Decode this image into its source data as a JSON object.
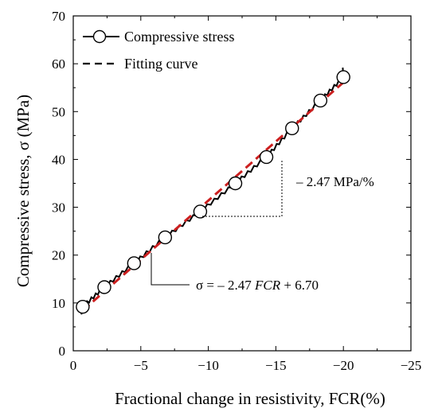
{
  "chart_data": {
    "type": "line",
    "xlabel": "Fractional change in resistivity, FCR(%)",
    "ylabel": "Compressive stress, σ (MPa)",
    "xlim": [
      0,
      -25
    ],
    "ylim": [
      0,
      70
    ],
    "xticks": [
      0,
      -5,
      -10,
      -15,
      -20,
      -25
    ],
    "xtick_labels": [
      "0",
      "−5",
      "−10",
      "−15",
      "−20",
      "−25"
    ],
    "yticks": [
      0,
      10,
      20,
      30,
      40,
      50,
      60,
      70
    ],
    "ytick_labels": [
      "0",
      "10",
      "20",
      "30",
      "40",
      "50",
      "60",
      "70"
    ],
    "grid": false,
    "legend_position": "top-left",
    "series": [
      {
        "name": "Compressive stress",
        "color": "#000000",
        "style": "solid-with-open-circles",
        "x": [
          -0.7,
          -2.3,
          -4.5,
          -6.8,
          -9.4,
          -12.0,
          -14.3,
          -16.2,
          -18.3,
          -20.0
        ],
        "y": [
          9.2,
          13.3,
          18.3,
          23.7,
          29.1,
          35.0,
          40.5,
          46.5,
          52.3,
          57.2
        ]
      },
      {
        "name": "Fitting curve",
        "color": "#cc1f1f",
        "style": "dashed",
        "x": [
          -0.7,
          -20.0
        ],
        "y": [
          8.43,
          56.1
        ]
      }
    ],
    "annotations": {
      "slope_label": "– 2.47 MPa/%",
      "equation_prefix": "σ = – 2.47 ",
      "equation_var": "FCR",
      "equation_suffix": " + 6.70"
    }
  }
}
